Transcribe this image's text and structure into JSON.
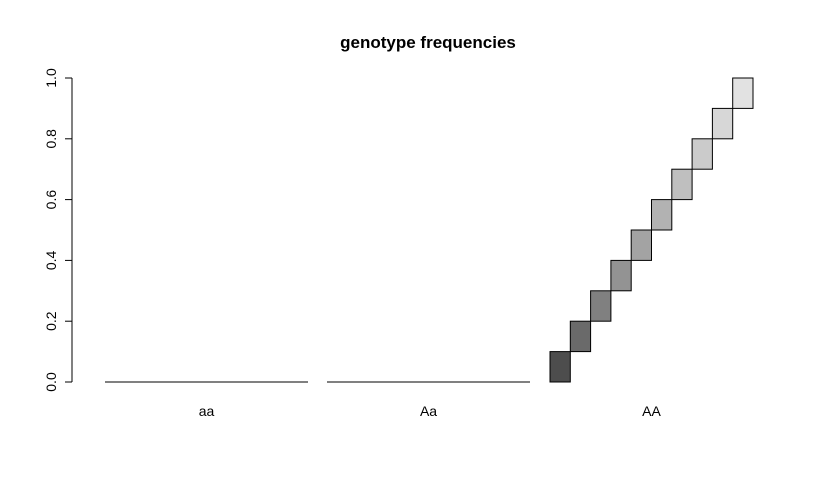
{
  "chart_data": {
    "type": "bar",
    "title": "genotype frequencies",
    "xlabel": "",
    "ylabel": "",
    "categories": [
      "aa",
      "Aa",
      "AA"
    ],
    "ylim": [
      0,
      1
    ],
    "yticks": [
      "0.0",
      "0.2",
      "0.4",
      "0.6",
      "0.8",
      "1.0"
    ],
    "grid": false,
    "legend": "none",
    "series": [
      {
        "values": [
          0,
          0,
          0.1
        ]
      },
      {
        "values": [
          0,
          0,
          0.1
        ]
      },
      {
        "values": [
          0,
          0,
          0.1
        ]
      },
      {
        "values": [
          0,
          0,
          0.1
        ]
      },
      {
        "values": [
          0,
          0,
          0.1
        ]
      },
      {
        "values": [
          0,
          0,
          0.1
        ]
      },
      {
        "values": [
          0,
          0,
          0.1
        ]
      },
      {
        "values": [
          0,
          0,
          0.1
        ]
      },
      {
        "values": [
          0,
          0,
          0.1
        ]
      },
      {
        "values": [
          0,
          0,
          0.1
        ]
      }
    ],
    "colors": [
      "#4d4d4d",
      "#6a6a6a",
      "#808080",
      "#939393",
      "#a3a3a3",
      "#b2b2b2",
      "#bfbfbf",
      "#cbcbcb",
      "#d7d7d7",
      "#e2e2e2"
    ]
  }
}
